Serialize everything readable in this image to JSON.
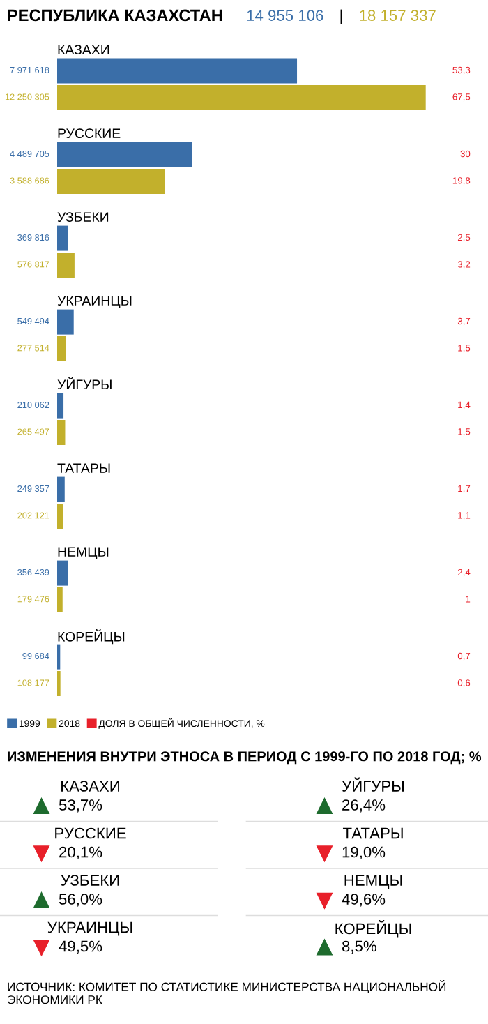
{
  "chart_data": [
    {
      "type": "bar",
      "orientation": "horizontal",
      "title": "РЕСПУБЛИКА КАЗАХСТАН",
      "categories": [
        "КАЗАХИ",
        "РУССКИЕ",
        "УЗБЕКИ",
        "УКРАИНЦЫ",
        "УЙГУРЫ",
        "ТАТАРЫ",
        "НЕМЦЫ",
        "КОРЕЙЦЫ"
      ],
      "series": [
        {
          "name": "1999",
          "color": "#3a6ea8",
          "values": [
            7971618,
            4489705,
            369816,
            549494,
            210062,
            249357,
            356439,
            99684
          ],
          "value_labels": [
            "7 971 618",
            "4 489 705",
            "369 816",
            "549 494",
            "210 062",
            "249 357",
            "356 439",
            "99 684"
          ]
        },
        {
          "name": "2018",
          "color": "#c2b02c",
          "values": [
            12250305,
            3588686,
            576817,
            277514,
            265497,
            202121,
            179476,
            108177
          ],
          "value_labels": [
            "12 250 305",
            "3 588 686",
            "576 817",
            "277 514",
            "265 497",
            "202 121",
            "179 476",
            "108 177"
          ]
        }
      ],
      "legend": "bottom left",
      "legend_title": "ДОЛЯ В ОБЩЕЙ ЧИСЛЕННОСТИ, %",
      "annotations": [
        "14 955 106",
        "|",
        "18 157 337",
        "53,3",
        "67,5",
        "30",
        "19,8",
        "2,5",
        "3,2",
        "3,7",
        "1,5",
        "1,4",
        "1,5",
        "1,7",
        "1,1",
        "2,4",
        "1",
        "0,7",
        "0,6"
      ]
    },
    {
      "type": "other",
      "title": "ИЗМЕНЕНИЯ ВНУТРИ ЭТНОСА В ПЕРИОД С 1999-ГО ПО 2018 ГОД; %",
      "categories": [
        "КАЗАХИ",
        "РУССКИЕ",
        "УЗБЕКИ",
        "УКРАИНЦЫ",
        "УЙГУРЫ",
        "ТАТАРЫ",
        "НЕМЦЫ",
        "КОРЕЙЦЫ"
      ],
      "series": [
        {
          "color": "#1e6b2e",
          "marker": "triangle",
          "values": [
            53.7,
            null,
            56.0,
            null,
            26.4,
            null,
            null,
            8.5
          ],
          "value_labels": [
            "53,7%",
            null,
            "56,0%",
            null,
            "26,4%",
            null,
            null,
            "8,5%"
          ]
        },
        {
          "color": "#e8202a",
          "marker": "triangle-down",
          "values": [
            null,
            20.1,
            null,
            49.5,
            null,
            19.0,
            49.6,
            null
          ],
          "value_labels": [
            null,
            "20,1%",
            null,
            "49,5%",
            null,
            "19,0%",
            "49,6%",
            null
          ]
        }
      ],
      "annotations": [
        "ИСТОЧНИК: КОМИТЕТ ПО СТАТИСТИКЕ МИНИСТЕРСТВА НАЦИОНАЛЬНОЙ ЭКОНОМИКИ РК"
      ]
    }
  ]
}
